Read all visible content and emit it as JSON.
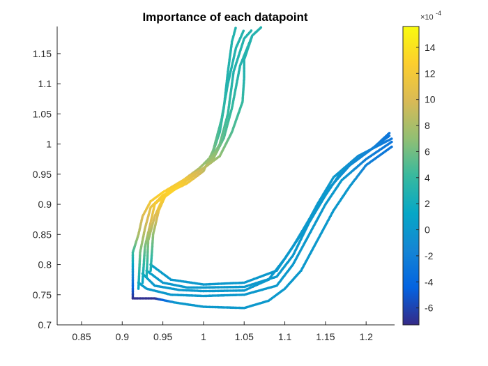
{
  "chart_data": {
    "type": "scatter",
    "title": "Importance of each datapoint",
    "xlabel": "",
    "ylabel": "",
    "xlim": [
      0.82,
      1.235
    ],
    "ylim": [
      0.7,
      1.195
    ],
    "xticks": [
      0.85,
      0.9,
      0.95,
      1,
      1.05,
      1.1,
      1.15,
      1.2
    ],
    "xtick_labels": [
      "0.85",
      "0.9",
      "0.95",
      "1",
      "1.05",
      "1.1",
      "1.15",
      "1.2"
    ],
    "yticks": [
      0.7,
      0.75,
      0.8,
      0.85,
      0.9,
      0.95,
      1,
      1.05,
      1.1,
      1.15
    ],
    "ytick_labels": [
      "0.7",
      "0.75",
      "0.8",
      "0.85",
      "0.9",
      "0.95",
      "1",
      "1.05",
      "1.1",
      "1.15"
    ],
    "grid": false,
    "colormap": "parula",
    "colorbar": {
      "limits": [
        -7.3,
        15.6
      ],
      "ticks": [
        -6,
        -4,
        -2,
        0,
        2,
        4,
        6,
        8,
        10,
        12,
        14
      ],
      "tick_labels": [
        "-6",
        "-4",
        "-2",
        "0",
        "2",
        "4",
        "6",
        "8",
        "10",
        "12",
        "14"
      ],
      "exponent_label": "×10",
      "exponent": "-4",
      "placement": "right"
    },
    "trajectories": [
      {
        "points": [
          [
            0.913,
            0.744
          ],
          [
            0.94,
            0.744
          ],
          [
            0.965,
            0.737
          ],
          [
            1.0,
            0.73
          ],
          [
            1.05,
            0.728
          ],
          [
            1.08,
            0.74
          ],
          [
            1.1,
            0.76
          ],
          [
            1.12,
            0.79
          ],
          [
            1.14,
            0.84
          ],
          [
            1.16,
            0.89
          ],
          [
            1.18,
            0.93
          ],
          [
            1.2,
            0.965
          ],
          [
            1.233,
            0.997
          ]
        ],
        "values": [
          -7,
          -7,
          0,
          0,
          0,
          0,
          0,
          0,
          0,
          0,
          0,
          -2,
          -3
        ]
      },
      {
        "points": [
          [
            0.92,
            0.77
          ],
          [
            0.93,
            0.76
          ],
          [
            0.96,
            0.75
          ],
          [
            1.0,
            0.748
          ],
          [
            1.05,
            0.75
          ],
          [
            1.09,
            0.765
          ],
          [
            1.11,
            0.8
          ],
          [
            1.13,
            0.85
          ],
          [
            1.15,
            0.9
          ],
          [
            1.17,
            0.94
          ],
          [
            1.2,
            0.975
          ],
          [
            1.233,
            1.005
          ]
        ],
        "values": [
          1,
          0,
          0,
          0,
          0,
          0,
          0,
          0,
          0,
          0,
          -2,
          -3
        ]
      },
      {
        "points": [
          [
            0.925,
            0.785
          ],
          [
            0.94,
            0.765
          ],
          [
            0.97,
            0.758
          ],
          [
            1.0,
            0.756
          ],
          [
            1.05,
            0.757
          ],
          [
            1.08,
            0.775
          ],
          [
            1.1,
            0.81
          ],
          [
            1.12,
            0.85
          ],
          [
            1.14,
            0.9
          ],
          [
            1.16,
            0.945
          ],
          [
            1.19,
            0.98
          ],
          [
            1.233,
            1.01
          ]
        ],
        "values": [
          1,
          0,
          0,
          0,
          0,
          0,
          0,
          0,
          0,
          0,
          -1,
          -3
        ]
      },
      {
        "points": [
          [
            0.93,
            0.79
          ],
          [
            0.95,
            0.77
          ],
          [
            0.98,
            0.762
          ],
          [
            1.0,
            0.762
          ],
          [
            1.05,
            0.763
          ],
          [
            1.09,
            0.78
          ],
          [
            1.11,
            0.815
          ],
          [
            1.13,
            0.87
          ],
          [
            1.15,
            0.915
          ],
          [
            1.17,
            0.955
          ],
          [
            1.2,
            0.985
          ],
          [
            1.23,
            1.015
          ]
        ],
        "values": [
          1,
          0,
          0,
          0,
          0,
          0,
          0,
          0,
          0,
          0,
          -1,
          -3
        ]
      },
      {
        "points": [
          [
            0.935,
            0.8
          ],
          [
            0.96,
            0.775
          ],
          [
            1.0,
            0.767
          ],
          [
            1.05,
            0.77
          ],
          [
            1.09,
            0.79
          ],
          [
            1.11,
            0.83
          ],
          [
            1.13,
            0.875
          ],
          [
            1.15,
            0.92
          ],
          [
            1.18,
            0.965
          ],
          [
            1.21,
            0.995
          ],
          [
            1.23,
            1.02
          ]
        ],
        "values": [
          1,
          0,
          0,
          0,
          0,
          0,
          0,
          0,
          -1,
          -2,
          -3
        ]
      },
      {
        "points": [
          [
            0.913,
            0.745
          ],
          [
            0.913,
            0.82
          ],
          [
            0.92,
            0.85
          ],
          [
            0.925,
            0.88
          ],
          [
            0.935,
            0.905
          ],
          [
            0.95,
            0.92
          ],
          [
            0.975,
            0.94
          ],
          [
            0.995,
            0.96
          ],
          [
            1.01,
            0.98
          ],
          [
            1.02,
            1.02
          ],
          [
            1.025,
            1.06
          ],
          [
            1.03,
            1.12
          ],
          [
            1.035,
            1.17
          ],
          [
            1.04,
            1.195
          ]
        ],
        "values": [
          -7,
          4,
          8,
          10,
          12,
          13,
          11,
          8,
          6,
          4,
          3,
          3,
          3,
          3
        ]
      },
      {
        "points": [
          [
            0.92,
            0.76
          ],
          [
            0.922,
            0.82
          ],
          [
            0.928,
            0.86
          ],
          [
            0.935,
            0.895
          ],
          [
            0.95,
            0.915
          ],
          [
            0.98,
            0.935
          ],
          [
            1.0,
            0.955
          ],
          [
            1.012,
            0.99
          ],
          [
            1.022,
            1.04
          ],
          [
            1.03,
            1.1
          ],
          [
            1.04,
            1.16
          ],
          [
            1.05,
            1.19
          ]
        ],
        "values": [
          1,
          6,
          9,
          11,
          13,
          12,
          9,
          6,
          4,
          3,
          3,
          3
        ]
      },
      {
        "points": [
          [
            0.925,
            0.77
          ],
          [
            0.928,
            0.83
          ],
          [
            0.935,
            0.87
          ],
          [
            0.94,
            0.9
          ],
          [
            0.96,
            0.925
          ],
          [
            0.985,
            0.945
          ],
          [
            1.005,
            0.965
          ],
          [
            1.02,
            1.0
          ],
          [
            1.03,
            1.05
          ],
          [
            1.037,
            1.12
          ],
          [
            1.05,
            1.175
          ],
          [
            1.06,
            1.19
          ]
        ],
        "values": [
          1,
          6,
          10,
          12,
          13,
          11,
          8,
          6,
          4,
          3,
          3,
          3
        ]
      },
      {
        "points": [
          [
            0.93,
            0.78
          ],
          [
            0.932,
            0.84
          ],
          [
            0.94,
            0.88
          ],
          [
            0.95,
            0.91
          ],
          [
            0.97,
            0.93
          ],
          [
            0.99,
            0.95
          ],
          [
            1.01,
            0.97
          ],
          [
            1.025,
            1.01
          ],
          [
            1.035,
            1.06
          ],
          [
            1.045,
            1.13
          ],
          [
            1.06,
            1.18
          ],
          [
            1.072,
            1.195
          ]
        ],
        "values": [
          2,
          7,
          10,
          13,
          13,
          10,
          8,
          5,
          4,
          3,
          3,
          3
        ]
      },
      {
        "points": [
          [
            0.935,
            0.79
          ],
          [
            0.938,
            0.85
          ],
          [
            0.945,
            0.89
          ],
          [
            0.955,
            0.92
          ],
          [
            0.975,
            0.94
          ],
          [
            1.0,
            0.96
          ],
          [
            1.02,
            0.98
          ],
          [
            1.035,
            1.02
          ],
          [
            1.048,
            1.07
          ],
          [
            1.05,
            1.11
          ],
          [
            1.05,
            1.14
          ],
          [
            1.06,
            1.18
          ]
        ],
        "values": [
          2,
          7,
          11,
          13,
          12,
          9,
          7,
          5,
          4,
          3,
          3,
          3
        ]
      }
    ]
  }
}
